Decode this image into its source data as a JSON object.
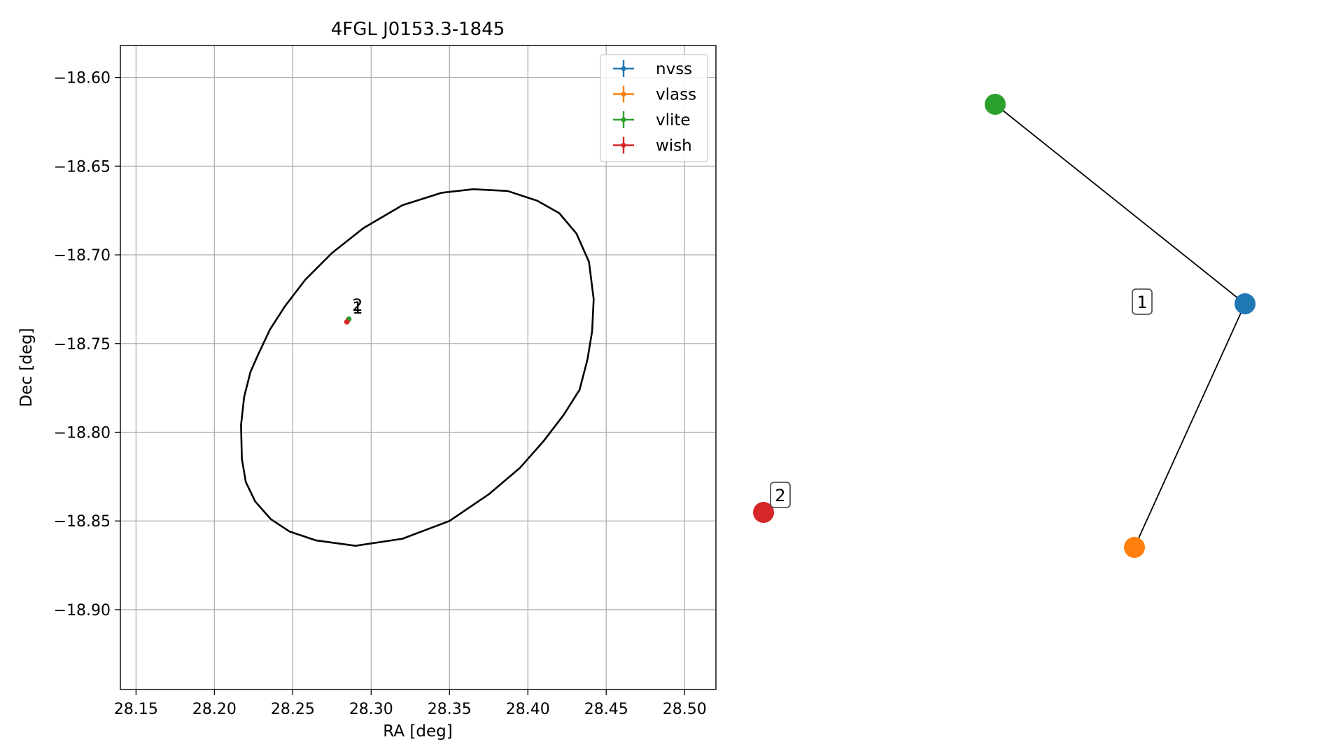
{
  "chart_data": [
    {
      "type": "scatter",
      "title": "4FGL J0153.3-1845",
      "xlabel": "RA [deg]",
      "ylabel": "Dec [deg]",
      "xlim": [
        28.14,
        28.52
      ],
      "ylim": [
        -18.945,
        -18.582
      ],
      "xticks": [
        28.15,
        28.2,
        28.25,
        28.3,
        28.35,
        28.4,
        28.45,
        28.5
      ],
      "xtick_labels": [
        "28.15",
        "28.20",
        "28.25",
        "28.30",
        "28.35",
        "28.40",
        "28.45",
        "28.50"
      ],
      "yticks": [
        -18.6,
        -18.65,
        -18.7,
        -18.75,
        -18.8,
        -18.85,
        -18.9
      ],
      "ytick_labels": [
        "−18.60",
        "−18.65",
        "−18.70",
        "−18.75",
        "−18.80",
        "−18.85",
        "−18.90"
      ],
      "grid": true,
      "legend_position": "top-right",
      "series": [
        {
          "name": "nvss",
          "color": "#1f77b4",
          "x": [
            28.2855
          ],
          "y": [
            -18.7365
          ]
        },
        {
          "name": "vlass",
          "color": "#ff7f0e",
          "x": [
            28.2853
          ],
          "y": [
            -18.7368
          ]
        },
        {
          "name": "vlite",
          "color": "#2ca02c",
          "x": [
            28.2858
          ],
          "y": [
            -18.7362
          ]
        },
        {
          "name": "wish",
          "color": "#d62728",
          "x": [
            28.2845
          ],
          "y": [
            -18.7378
          ]
        }
      ],
      "ellipse": {
        "color": "#000000",
        "points": [
          [
            28.365,
            -18.663
          ],
          [
            28.387,
            -18.664
          ],
          [
            28.406,
            -18.6695
          ],
          [
            28.42,
            -18.6765
          ],
          [
            28.431,
            -18.688
          ],
          [
            28.439,
            -18.704
          ],
          [
            28.442,
            -18.725
          ],
          [
            28.441,
            -18.743
          ],
          [
            28.438,
            -18.759
          ],
          [
            28.433,
            -18.776
          ],
          [
            28.423,
            -18.79
          ],
          [
            28.41,
            -18.805
          ],
          [
            28.395,
            -18.82
          ],
          [
            28.375,
            -18.835
          ],
          [
            28.35,
            -18.85
          ],
          [
            28.32,
            -18.86
          ],
          [
            28.29,
            -18.864
          ],
          [
            28.265,
            -18.861
          ],
          [
            28.248,
            -18.856
          ],
          [
            28.236,
            -18.849
          ],
          [
            28.226,
            -18.839
          ],
          [
            28.22,
            -18.828
          ],
          [
            28.2175,
            -18.815
          ],
          [
            28.217,
            -18.796
          ],
          [
            28.219,
            -18.78
          ],
          [
            28.223,
            -18.766
          ],
          [
            28.228,
            -18.756
          ],
          [
            28.2355,
            -18.742
          ],
          [
            28.245,
            -18.729
          ],
          [
            28.258,
            -18.714
          ],
          [
            28.275,
            -18.699
          ],
          [
            28.295,
            -18.685
          ],
          [
            28.32,
            -18.672
          ],
          [
            28.345,
            -18.665
          ],
          [
            28.365,
            -18.663
          ]
        ]
      },
      "annotations": [
        {
          "text": "1",
          "x": 28.2913,
          "y": -18.7315
        },
        {
          "text": "2",
          "x": 28.2913,
          "y": -18.73
        }
      ]
    },
    {
      "type": "network",
      "nodes": [
        {
          "name": "vlite",
          "color": "#2ca02c"
        },
        {
          "name": "nvss",
          "color": "#1f77b4"
        },
        {
          "name": "vlass",
          "color": "#ff7f0e"
        },
        {
          "name": "wish",
          "color": "#d62728"
        }
      ],
      "edges": [
        [
          "vlite",
          "nvss"
        ],
        [
          "nvss",
          "vlass"
        ]
      ],
      "labels": [
        "1",
        "2"
      ]
    }
  ]
}
